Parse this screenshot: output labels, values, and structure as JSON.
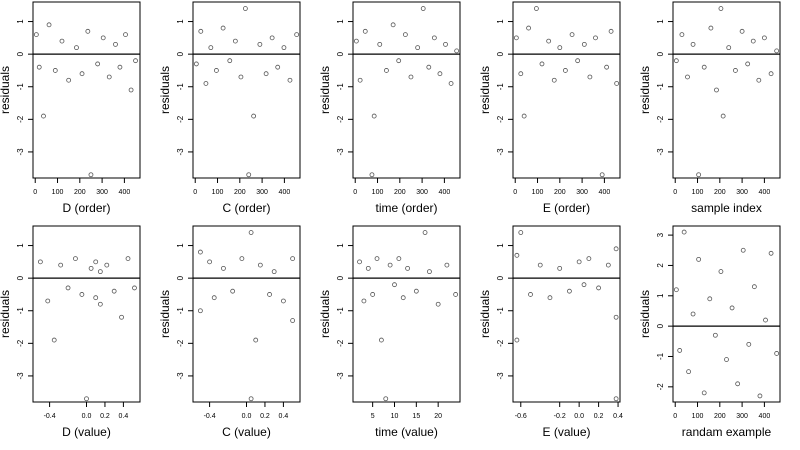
{
  "chart_data": [
    {
      "type": "scatter",
      "xlabel": "D (order)",
      "ylabel": "residuals",
      "xlim": [
        -10,
        470
      ],
      "ylim": [
        -3.8,
        1.6
      ],
      "xticks": [
        0,
        100,
        200,
        300,
        400
      ],
      "xtick_labels": [
        "0",
        "100",
        "200",
        "300",
        "400"
      ],
      "yticks": [
        -3,
        -2,
        -1,
        0,
        1
      ],
      "ytick_labels": [
        "-3",
        "-2",
        "-1",
        "0",
        "1"
      ],
      "hline": 0,
      "x": [
        5,
        18,
        37,
        62,
        90,
        120,
        150,
        185,
        210,
        236,
        250,
        280,
        305,
        332,
        360,
        380,
        405,
        430,
        450
      ],
      "y": [
        0.6,
        -0.4,
        -1.9,
        0.9,
        -0.5,
        0.4,
        -0.8,
        0.2,
        -0.6,
        0.7,
        -3.7,
        -0.3,
        0.5,
        -0.7,
        0.3,
        -0.4,
        0.6,
        -1.1,
        -0.2
      ]
    },
    {
      "type": "scatter",
      "xlabel": "C (order)",
      "ylabel": "residuals",
      "xlim": [
        -10,
        470
      ],
      "ylim": [
        -3.8,
        1.6
      ],
      "xticks": [
        0,
        100,
        200,
        300,
        400
      ],
      "xtick_labels": [
        "0",
        "100",
        "200",
        "300",
        "400"
      ],
      "yticks": [
        -3,
        -2,
        -1,
        0,
        1
      ],
      "ytick_labels": [
        "-3",
        "-2",
        "-1",
        "0",
        "1"
      ],
      "hline": 0,
      "x": [
        5,
        25,
        48,
        70,
        95,
        125,
        155,
        180,
        205,
        225,
        240,
        262,
        290,
        318,
        345,
        370,
        398,
        425,
        455
      ],
      "y": [
        -0.3,
        0.7,
        -0.9,
        0.2,
        -0.5,
        0.8,
        -0.2,
        0.4,
        -0.7,
        1.4,
        -3.7,
        -1.9,
        0.3,
        -0.6,
        0.5,
        -0.4,
        0.2,
        -0.8,
        0.6
      ]
    },
    {
      "type": "scatter",
      "xlabel": "time (order)",
      "ylabel": "residuals",
      "xlim": [
        -10,
        470
      ],
      "ylim": [
        -3.8,
        1.6
      ],
      "xticks": [
        0,
        100,
        200,
        300,
        400
      ],
      "xtick_labels": [
        "0",
        "100",
        "200",
        "300",
        "400"
      ],
      "yticks": [
        -3,
        -2,
        -1,
        0,
        1
      ],
      "ytick_labels": [
        "-3",
        "-2",
        "-1",
        "0",
        "1"
      ],
      "hline": 0,
      "x": [
        5,
        22,
        45,
        75,
        85,
        110,
        140,
        170,
        195,
        225,
        250,
        280,
        305,
        330,
        355,
        380,
        405,
        430,
        455
      ],
      "y": [
        0.4,
        -0.8,
        0.7,
        -3.7,
        -1.9,
        0.3,
        -0.5,
        0.9,
        -0.2,
        0.6,
        -0.7,
        0.2,
        1.4,
        -0.4,
        0.5,
        -0.6,
        0.3,
        -0.9,
        0.1
      ]
    },
    {
      "type": "scatter",
      "xlabel": "E (order)",
      "ylabel": "residuals",
      "xlim": [
        -10,
        470
      ],
      "ylim": [
        -3.8,
        1.6
      ],
      "xticks": [
        0,
        100,
        200,
        300,
        400
      ],
      "xtick_labels": [
        "0",
        "100",
        "200",
        "300",
        "400"
      ],
      "yticks": [
        -3,
        -2,
        -1,
        0,
        1
      ],
      "ytick_labels": [
        "-3",
        "-2",
        "-1",
        "0",
        "1"
      ],
      "hline": 0,
      "x": [
        5,
        25,
        40,
        60,
        95,
        120,
        150,
        175,
        200,
        225,
        255,
        280,
        310,
        335,
        360,
        390,
        410,
        430,
        455
      ],
      "y": [
        0.5,
        -0.6,
        -1.9,
        0.8,
        1.4,
        -0.3,
        0.4,
        -0.8,
        0.2,
        -0.5,
        0.6,
        -0.2,
        0.3,
        -0.7,
        0.5,
        -3.7,
        -0.4,
        0.7,
        -0.9
      ]
    },
    {
      "type": "scatter",
      "xlabel": "sample index",
      "ylabel": "residuals",
      "xlim": [
        -10,
        470
      ],
      "ylim": [
        -3.8,
        1.6
      ],
      "xticks": [
        0,
        100,
        200,
        300,
        400
      ],
      "xtick_labels": [
        "0",
        "100",
        "200",
        "300",
        "400"
      ],
      "yticks": [
        -3,
        -2,
        -1,
        0,
        1
      ],
      "ytick_labels": [
        "-3",
        "-2",
        "-1",
        "0",
        "1"
      ],
      "hline": 0,
      "x": [
        5,
        30,
        55,
        80,
        105,
        130,
        160,
        185,
        205,
        215,
        240,
        270,
        300,
        325,
        350,
        375,
        400,
        430,
        455
      ],
      "y": [
        -0.2,
        0.6,
        -0.7,
        0.3,
        -3.7,
        -0.4,
        0.8,
        -1.1,
        1.4,
        -1.9,
        0.2,
        -0.5,
        0.7,
        -0.3,
        0.4,
        -0.8,
        0.5,
        -0.6,
        0.1
      ]
    },
    {
      "type": "scatter",
      "xlabel": "D (value)",
      "ylabel": "residuals",
      "xlim": [
        -0.58,
        0.58
      ],
      "ylim": [
        -3.8,
        1.6
      ],
      "xticks": [
        -0.4,
        0,
        0.2,
        0.4
      ],
      "xtick_labels": [
        "-0.4",
        "0.0",
        "0.2",
        "0.4"
      ],
      "yticks": [
        -3,
        -2,
        -1,
        0,
        1
      ],
      "ytick_labels": [
        "-3",
        "-2",
        "-1",
        "0",
        "1"
      ],
      "hline": 0,
      "x": [
        -0.5,
        -0.42,
        -0.35,
        -0.28,
        -0.2,
        -0.12,
        -0.05,
        0,
        0.05,
        0.1,
        0.1,
        0.15,
        0.15,
        0.22,
        0.3,
        0.38,
        0.45,
        0.52
      ],
      "y": [
        0.5,
        -0.7,
        -1.9,
        0.4,
        -0.3,
        0.6,
        -0.5,
        -3.7,
        0.3,
        -0.6,
        0.5,
        0.2,
        -0.8,
        0.4,
        -0.4,
        -1.2,
        0.6,
        -0.3
      ]
    },
    {
      "type": "scatter",
      "xlabel": "C (value)",
      "ylabel": "residuals",
      "xlim": [
        -0.58,
        0.58
      ],
      "ylim": [
        -3.8,
        1.6
      ],
      "xticks": [
        -0.4,
        0,
        0.2,
        0.4
      ],
      "xtick_labels": [
        "-0.4",
        "0.0",
        "0.2",
        "0.4"
      ],
      "yticks": [
        -3,
        -2,
        -1,
        0,
        1
      ],
      "ytick_labels": [
        "-3",
        "-2",
        "-1",
        "0",
        "1"
      ],
      "hline": 0,
      "x": [
        -0.5,
        -0.5,
        -0.4,
        -0.35,
        -0.25,
        -0.15,
        -0.05,
        0.05,
        0.05,
        0.1,
        0.15,
        0.25,
        0.3,
        0.4,
        0.5,
        0.5
      ],
      "y": [
        0.8,
        -1.0,
        0.5,
        -0.6,
        0.3,
        -0.4,
        0.6,
        1.4,
        -3.7,
        -1.9,
        0.4,
        -0.5,
        0.2,
        -0.7,
        0.6,
        -1.3
      ]
    },
    {
      "type": "scatter",
      "xlabel": "time (value)",
      "ylabel": "residuals",
      "xlim": [
        0.5,
        25
      ],
      "ylim": [
        -3.8,
        1.6
      ],
      "xticks": [
        5,
        10,
        15,
        20
      ],
      "xtick_labels": [
        "5",
        "10",
        "15",
        "20"
      ],
      "yticks": [
        -3,
        -2,
        -1,
        0,
        1
      ],
      "ytick_labels": [
        "-3",
        "-2",
        "-1",
        "0",
        "1"
      ],
      "hline": 0,
      "x": [
        2,
        3,
        4,
        5,
        6,
        7,
        8,
        9,
        10,
        11,
        12,
        13,
        15,
        17,
        18,
        20,
        22,
        24
      ],
      "y": [
        0.5,
        -0.7,
        0.3,
        -0.5,
        0.6,
        -1.9,
        -3.7,
        0.4,
        -0.2,
        0.6,
        -0.6,
        0.3,
        -0.4,
        1.4,
        0.2,
        -0.8,
        0.4,
        -0.5
      ]
    },
    {
      "type": "scatter",
      "xlabel": "E (value)",
      "ylabel": "residuals",
      "xlim": [
        -0.68,
        0.42
      ],
      "ylim": [
        -3.8,
        1.6
      ],
      "xticks": [
        -0.6,
        -0.2,
        0,
        0.2,
        0.4
      ],
      "xtick_labels": [
        "-0.6",
        "-0.2",
        "0.0",
        "0.2",
        "0.4"
      ],
      "yticks": [
        -3,
        -2,
        -1,
        0,
        1
      ],
      "ytick_labels": [
        "-3",
        "-2",
        "-1",
        "0",
        "1"
      ],
      "hline": 0,
      "x": [
        -0.64,
        -0.64,
        -0.6,
        -0.5,
        -0.4,
        -0.3,
        -0.2,
        -0.1,
        0,
        0.05,
        0.1,
        0.2,
        0.3,
        0.38,
        0.38,
        0.38
      ],
      "y": [
        0.7,
        -1.9,
        1.4,
        -0.5,
        0.4,
        -0.6,
        0.3,
        -0.4,
        0.5,
        -0.2,
        0.6,
        -0.3,
        0.4,
        0.9,
        -1.2,
        -3.7
      ]
    },
    {
      "type": "scatter",
      "xlabel": "randam example",
      "ylabel": "residuals",
      "xlim": [
        -10,
        470
      ],
      "ylim": [
        -2.5,
        3.3
      ],
      "xticks": [
        0,
        100,
        200,
        300,
        400
      ],
      "xtick_labels": [
        "0",
        "100",
        "200",
        "300",
        "400"
      ],
      "yticks": [
        -2,
        -1,
        0,
        1,
        2,
        3
      ],
      "ytick_labels": [
        "-2",
        "-1",
        "0",
        "1",
        "2",
        "3"
      ],
      "hline": 0,
      "x": [
        5,
        20,
        40,
        60,
        80,
        105,
        130,
        155,
        180,
        205,
        230,
        255,
        280,
        305,
        330,
        355,
        380,
        405,
        430,
        455
      ],
      "y": [
        1.2,
        -0.8,
        3.1,
        -1.5,
        0.4,
        2.2,
        -2.2,
        0.9,
        -0.3,
        1.8,
        -1.1,
        0.6,
        -1.9,
        2.5,
        -0.6,
        1.3,
        -2.3,
        0.2,
        2.4,
        -0.9
      ]
    }
  ]
}
